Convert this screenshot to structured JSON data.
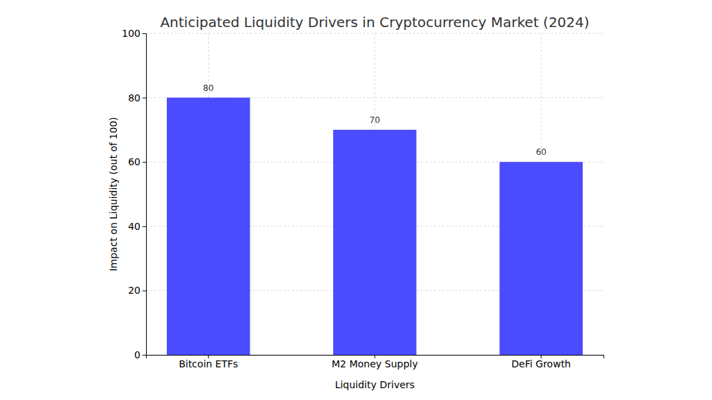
{
  "chart_data": {
    "type": "bar",
    "title": "Anticipated Liquidity Drivers in Cryptocurrency Market (2024)",
    "x_label": "Liquidity Drivers",
    "y_label": "Impact on Liquidity (out of 100)",
    "categories": [
      "Bitcoin ETFs",
      "M2 Money Supply",
      "DeFi Growth"
    ],
    "values": [
      80,
      70,
      60
    ],
    "color": "#4b4bff",
    "ylim": [
      0,
      100
    ],
    "yticks": [
      0,
      20,
      40,
      60,
      80,
      100
    ],
    "grid": true,
    "data_labels": true
  }
}
